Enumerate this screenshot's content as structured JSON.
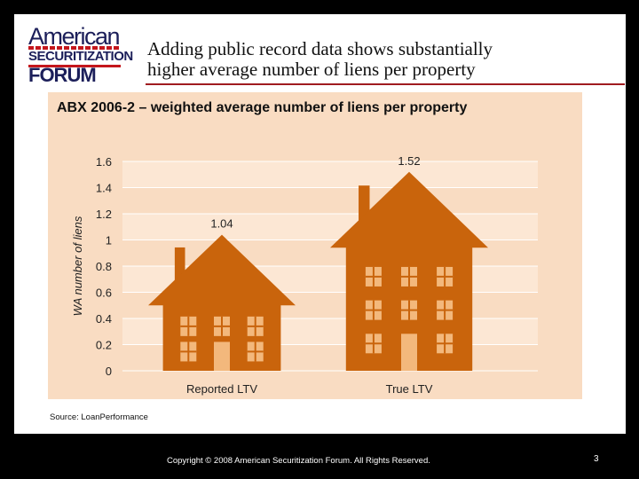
{
  "logo": {
    "line1": "American",
    "line2": "SECURITIZATION",
    "line3": "FORUM"
  },
  "slide_title_line1": "Adding public record data shows substantially",
  "slide_title_line2": "higher average number of liens per property",
  "source": "Source:  LoanPerformance",
  "footer": "Copyright © 2008 American Securitization Forum. All Rights Reserved.",
  "page_number": "3",
  "colors": {
    "house": "#c9640c",
    "window": "#f3b87c",
    "band": "#fce7d4",
    "panel": "#f9dcc2",
    "rule": "#a01c20"
  },
  "chart_data": {
    "type": "bar",
    "title": "ABX 2006-2 – weighted average number of liens per property",
    "ylabel": "WA number of liens",
    "xlabel": "",
    "categories": [
      "Reported LTV",
      "True LTV"
    ],
    "values": [
      1.04,
      1.52
    ],
    "value_labels": [
      "1.04",
      "1.52"
    ],
    "ylim": [
      0,
      1.6
    ],
    "yticks": [
      0,
      0.2,
      0.4,
      0.6,
      0.8,
      1,
      1.2,
      1.4,
      1.6
    ],
    "ytick_labels": [
      "0",
      "0.2",
      "0.4",
      "0.6",
      "0.8",
      "1",
      "1.2",
      "1.4",
      "1.6"
    ],
    "bar_style": "house-shaped",
    "grid": true
  }
}
